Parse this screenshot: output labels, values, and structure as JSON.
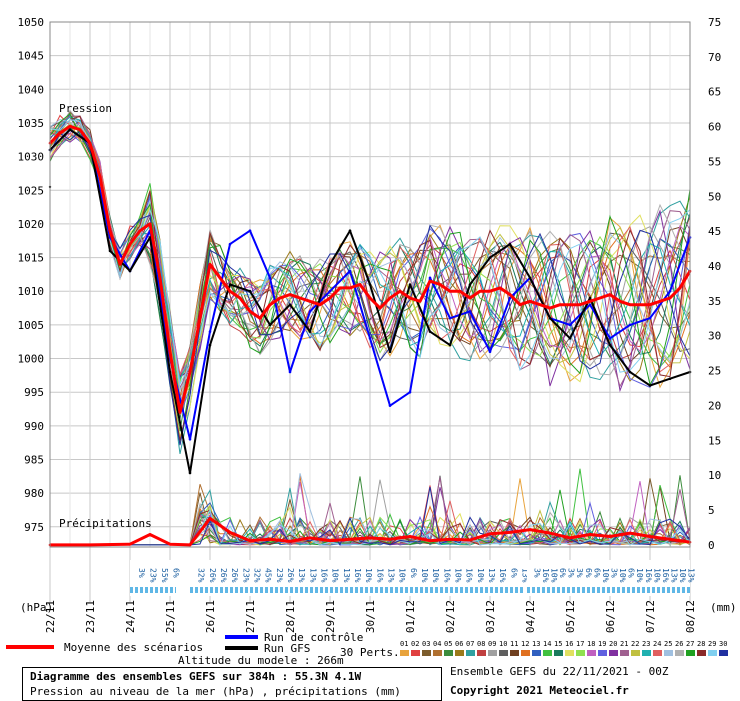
{
  "chart_data": {
    "type": "line",
    "left_axis": {
      "unit": "(hPa)",
      "ticks": [
        975,
        980,
        985,
        990,
        995,
        1000,
        1005,
        1010,
        1015,
        1020,
        1025,
        1030,
        1035,
        1040,
        1045,
        1050
      ],
      "range": [
        972,
        1050
      ]
    },
    "right_axis": {
      "unit": "(mm)",
      "ticks": [
        0,
        5,
        10,
        15,
        20,
        25,
        30,
        35,
        40,
        45,
        50,
        55,
        60,
        65,
        70,
        75
      ],
      "range": [
        -0.3,
        75
      ]
    },
    "x_labels": [
      "22/11",
      "23/11",
      "24/11",
      "25/11",
      "26/11",
      "27/11",
      "28/11",
      "29/11",
      "30/11",
      "01/12",
      "02/12",
      "03/12",
      "04/12",
      "05/12",
      "06/12",
      "07/12",
      "08/12"
    ],
    "x_range_hours": [
      0,
      384
    ],
    "grid": true,
    "annotations": {
      "pressure": "Pression",
      "precip": "Précipitations"
    },
    "pressure_mean": {
      "name": "Moyenne des scénarios",
      "color": "#ff0000",
      "x": [
        0,
        6,
        12,
        18,
        24,
        30,
        36,
        42,
        48,
        54,
        60,
        66,
        72,
        78,
        84,
        90,
        96,
        102,
        108,
        114,
        120,
        126,
        132,
        138,
        144,
        150,
        156,
        162,
        168,
        174,
        180,
        186,
        192,
        198,
        204,
        210,
        216,
        222,
        228,
        234,
        240,
        246,
        252,
        258,
        264,
        270,
        276,
        282,
        288,
        294,
        300,
        306,
        312,
        318,
        324,
        330,
        336,
        342,
        348,
        354,
        360,
        366,
        372,
        378,
        384
      ],
      "y": [
        1032,
        1033.5,
        1034.5,
        1034,
        1032,
        1027,
        1019,
        1014,
        1017,
        1019,
        1020,
        1012,
        1001,
        992,
        998,
        1006,
        1014,
        1012,
        1010,
        1009,
        1007,
        1006,
        1008,
        1009,
        1009.5,
        1009,
        1008.5,
        1008,
        1009,
        1010.5,
        1010.5,
        1011,
        1009,
        1007.5,
        1009,
        1010,
        1009,
        1008.5,
        1011.5,
        1011,
        1010,
        1010,
        1009,
        1010,
        1010,
        1010.5,
        1009.5,
        1008,
        1008.5,
        1008,
        1007.5,
        1008,
        1008,
        1008,
        1008.5,
        1009,
        1009.5,
        1008.5,
        1008,
        1008,
        1008,
        1008.5,
        1009,
        1010.5,
        1013
      ]
    },
    "pressure_control": {
      "name": "Run de contrôle",
      "color": "#0000ff",
      "x": [
        0,
        12,
        24,
        36,
        48,
        60,
        72,
        84,
        96,
        108,
        120,
        132,
        144,
        156,
        168,
        180,
        192,
        204,
        216,
        228,
        240,
        252,
        264,
        276,
        288,
        300,
        312,
        324,
        336,
        348,
        360,
        372,
        384
      ],
      "y": [
        1031,
        1034,
        1032,
        1018,
        1013,
        1019,
        1000,
        988,
        1004,
        1017,
        1019,
        1012,
        998,
        1007,
        1010,
        1013,
        1003,
        993,
        995,
        1012,
        1006,
        1007,
        1001,
        1009,
        1012,
        1006,
        1005,
        1008,
        1003,
        1005,
        1006,
        1010,
        1018
      ]
    },
    "pressure_gfs": {
      "name": "Run GFS",
      "color": "#000000",
      "x": [
        0,
        12,
        24,
        36,
        48,
        60,
        72,
        84,
        96,
        108,
        120,
        132,
        144,
        156,
        168,
        180,
        192,
        204,
        216,
        228,
        240,
        252,
        264,
        276,
        288,
        300,
        312,
        324,
        336,
        348,
        360,
        372,
        384
      ],
      "y": [
        1031,
        1034,
        1032,
        1016,
        1013,
        1018,
        998,
        983,
        1002,
        1011,
        1010,
        1005,
        1008,
        1004,
        1014,
        1019,
        1011,
        1001,
        1011,
        1004,
        1002,
        1011,
        1015,
        1017,
        1012,
        1006,
        1003,
        1009,
        1002,
        998,
        996,
        997,
        998
      ]
    },
    "precip_mean": {
      "name": "Moyenne des scénarios",
      "color": "#ff0000",
      "x": [
        0,
        24,
        48,
        60,
        72,
        84,
        96,
        108,
        120,
        132,
        144,
        156,
        168,
        180,
        192,
        204,
        216,
        228,
        240,
        252,
        264,
        276,
        288,
        300,
        312,
        324,
        336,
        348,
        360,
        372,
        384
      ],
      "y": [
        0,
        0,
        0.1,
        1.5,
        0.1,
        0,
        3.8,
        1.8,
        0.6,
        0.8,
        0.5,
        1,
        0.6,
        0.8,
        1,
        0.8,
        1.2,
        0.6,
        0.8,
        0.7,
        1.6,
        1.8,
        2.2,
        1.7,
        1,
        1.5,
        1.2,
        1.7,
        1.2,
        0.8,
        0.4
      ]
    },
    "precip_probability": {
      "labels": [
        "3%",
        "23%",
        "55%",
        "6%",
        "32%",
        "26%",
        "26%",
        "26%",
        "23%",
        "32%",
        "45%",
        "23%",
        "26%",
        "13%",
        "13%",
        "16%",
        "10%",
        "13%",
        "16%",
        "10%",
        "16%",
        "13%",
        "10%",
        "6%",
        "10%",
        "10%",
        "16%",
        "10%",
        "16%",
        "10%",
        "13%",
        "16%",
        "6%",
        "13%",
        "3%",
        "16%",
        "10%",
        "6%",
        "3%",
        "3%",
        "6%",
        "6%",
        "10%",
        "3%",
        "10%",
        "6%",
        "10%",
        "16%",
        "10%",
        "16%",
        "13%",
        "10%",
        "13%"
      ]
    },
    "member_count": 30,
    "member_colors": [
      "#e8a33c",
      "#e04040",
      "#7c5c2c",
      "#b07030",
      "#3c8c3c",
      "#9b7a1a",
      "#30a0a0",
      "#c04040",
      "#a0a0a0",
      "#5f5f5f",
      "#704020",
      "#e07020",
      "#3060c0",
      "#40c040",
      "#1a7a5c",
      "#e0e060",
      "#90e050",
      "#c060c0",
      "#6060e0",
      "#8030a0",
      "#a06090",
      "#c0c040",
      "#20b0b0",
      "#e06060",
      "#a0c0e0",
      "#b0b0b0",
      "#20a020",
      "#8a2a2a",
      "#80d0f0",
      "#2030a0"
    ]
  },
  "legend": {
    "mean": "Moyenne des scénarios",
    "control": "Run de contrôle",
    "gfs": "Run GFS",
    "perts_label": "30 Perts.",
    "member_numbers": [
      "01",
      "02",
      "03",
      "04",
      "05",
      "06",
      "07",
      "08",
      "09",
      "10",
      "11",
      "12",
      "13",
      "14",
      "15",
      "16",
      "17",
      "18",
      "19",
      "20",
      "21",
      "22",
      "23",
      "24",
      "25",
      "26",
      "27",
      "28",
      "29",
      "30"
    ]
  },
  "footer": {
    "altitude": "Altitude du modele : 266m",
    "title_line": "Diagramme des ensembles GEFS sur 384h : 55.3N 4.1W",
    "subtitle_line": "Pression au niveau de la mer (hPa) , précipitations (mm)",
    "ensemble_run": "Ensemble GEFS du 22/11/2021 - 00Z",
    "copyright": "Copyright 2021 Meteociel.fr"
  }
}
